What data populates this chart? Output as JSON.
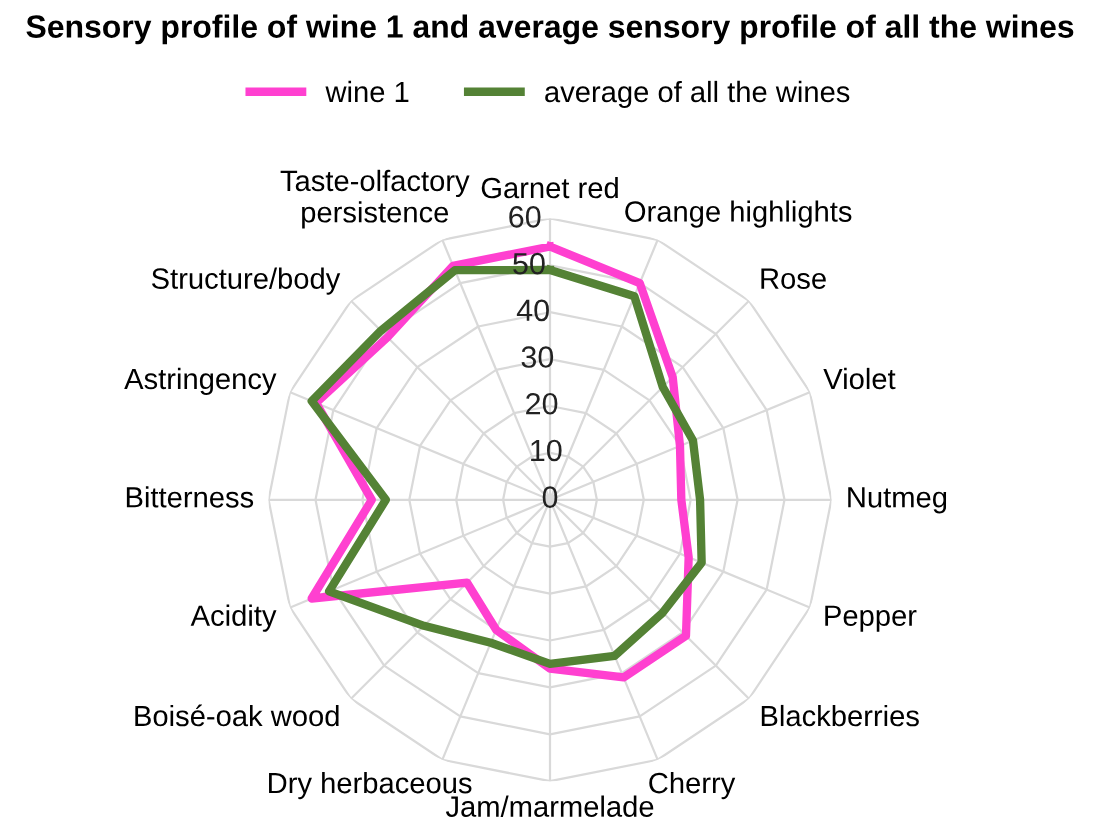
{
  "chart_data": {
    "type": "radar",
    "title": "Sensory profile of wine 1 and average sensory profile of all the wines",
    "categories": [
      "Garnet red",
      "Orange highlights",
      "Rose",
      "Violet",
      "Nutmeg",
      "Pepper",
      "Blackberries",
      "Cherry",
      "Jam/marmelade",
      "Dry herbaceous",
      "Boisé-oak wood",
      "Acidity",
      "Bitterness",
      "Astringency",
      "Structure/body",
      "Taste-olfactory persistence"
    ],
    "series": [
      {
        "name": "wine 1",
        "color": "#ff40d0",
        "values": [
          54,
          50,
          37,
          30,
          28,
          32,
          41,
          41,
          36,
          30,
          25,
          55,
          38,
          54,
          49,
          54
        ]
      },
      {
        "name": "average of all the wines",
        "color": "#548235",
        "values": [
          49,
          47,
          34,
          33,
          32,
          35,
          34,
          36,
          35,
          33,
          38,
          51,
          35,
          55,
          51,
          53
        ]
      }
    ],
    "ylim": [
      0,
      60
    ],
    "yticks": [
      0,
      10,
      20,
      30,
      40,
      50,
      60
    ],
    "grid": true,
    "legend": "top",
    "marker": "none",
    "line_style": "solid"
  }
}
